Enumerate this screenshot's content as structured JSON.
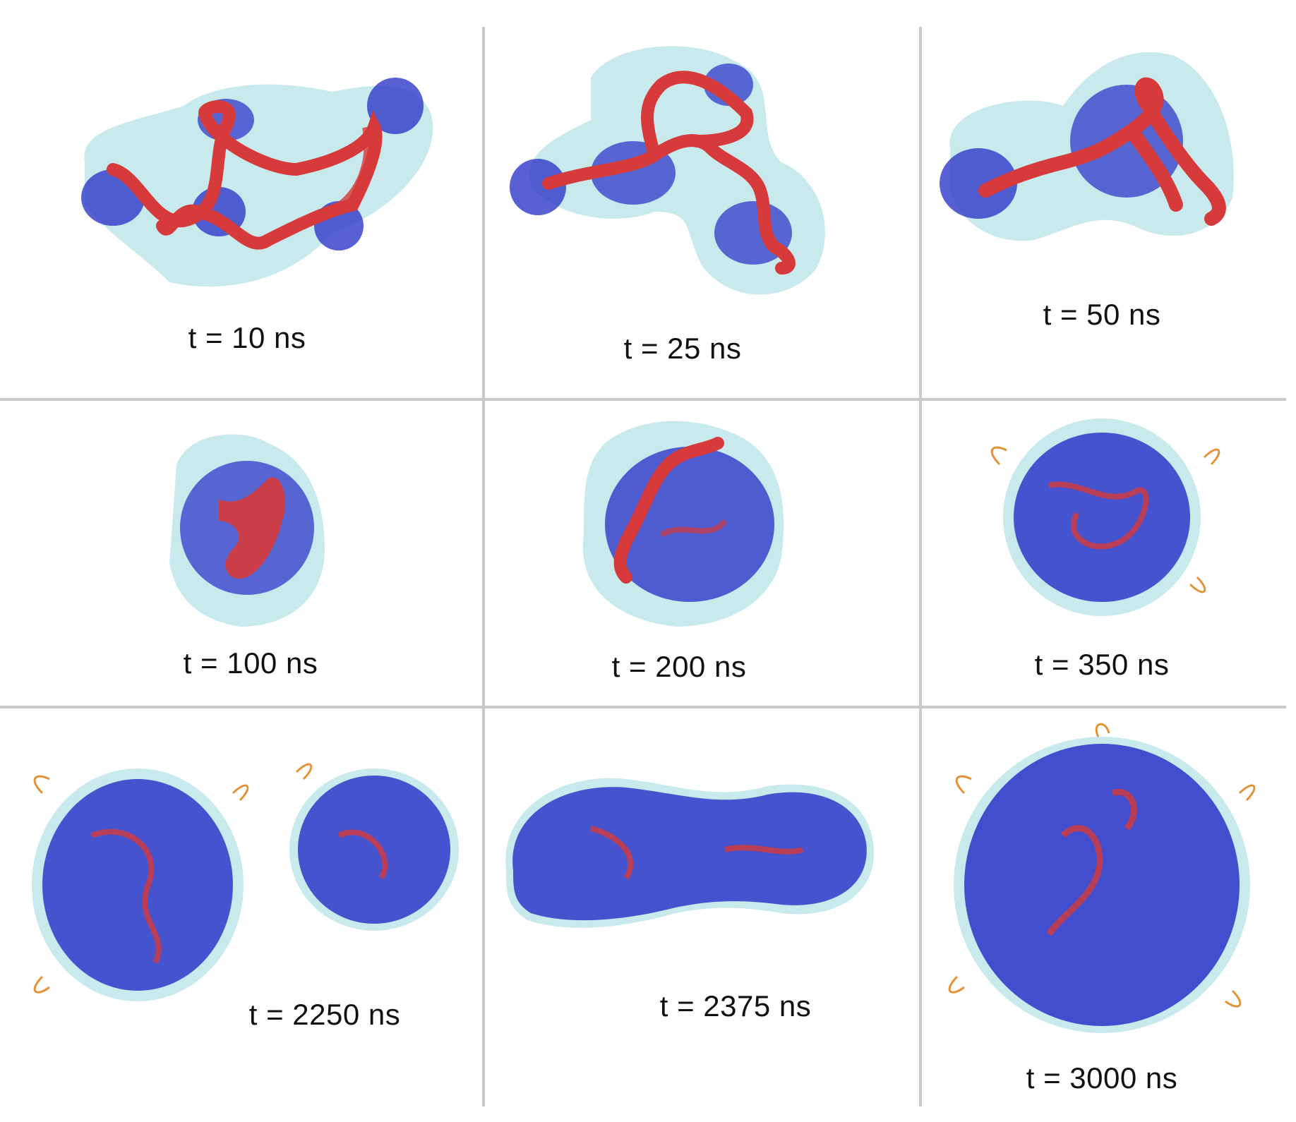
{
  "figure": {
    "panels": [
      {
        "id": "p1",
        "label": "t = 10 ns",
        "stage": "extended"
      },
      {
        "id": "p2",
        "label": "t = 25 ns",
        "stage": "extended"
      },
      {
        "id": "p3",
        "label": "t = 50 ns",
        "stage": "extended"
      },
      {
        "id": "p4",
        "label": "t = 100 ns",
        "stage": "collapsing"
      },
      {
        "id": "p5",
        "label": "t = 200 ns",
        "stage": "collapsing"
      },
      {
        "id": "p6",
        "label": "t = 350 ns",
        "stage": "globule"
      },
      {
        "id": "p7",
        "label": "t = 2250 ns",
        "stage": "two-globules"
      },
      {
        "id": "p8",
        "label": "t = 2375 ns",
        "stage": "fusing"
      },
      {
        "id": "p9",
        "label": "t = 3000 ns",
        "stage": "merged-globule"
      }
    ],
    "colors": {
      "chain": "#d63a3a",
      "protein": "#2f38c8",
      "solvent": "#bfe6ea",
      "tails": "#e39236",
      "accent_green": "#2aa83a",
      "divider": "#c9c9c9"
    }
  }
}
